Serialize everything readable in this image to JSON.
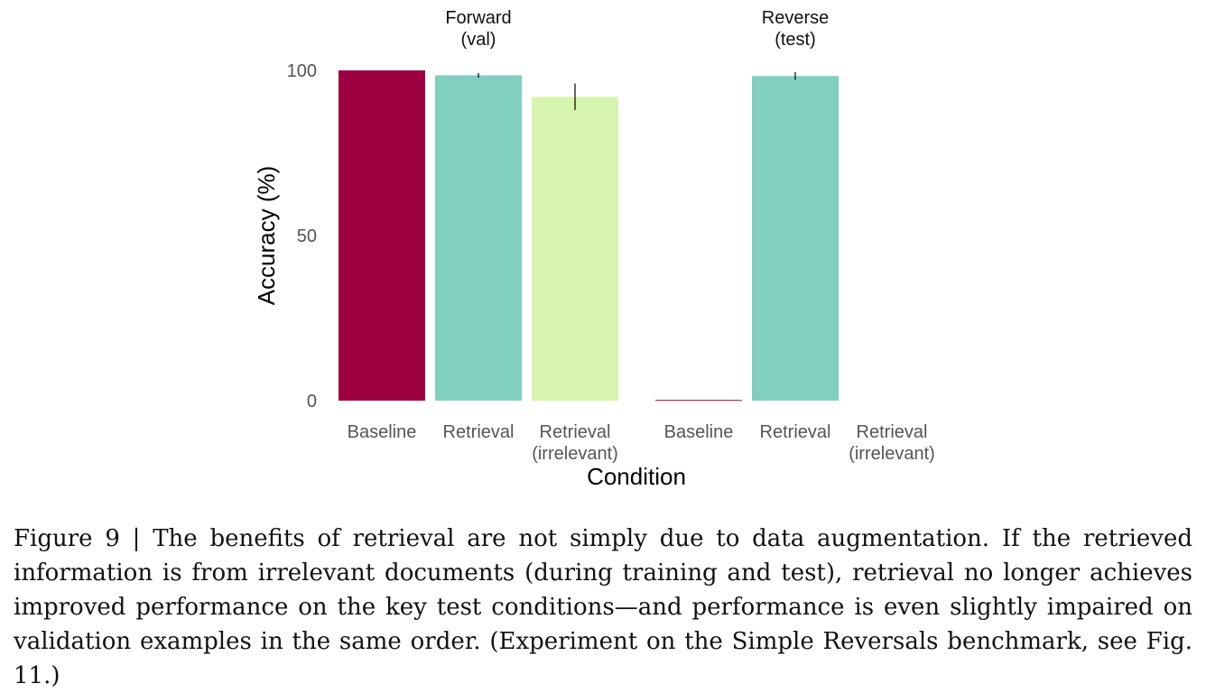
{
  "chart_data": {
    "type": "bar",
    "xlabel": "Condition",
    "ylabel": "Accuracy (%)",
    "ylim": [
      0,
      100
    ],
    "yticks": [
      0,
      50,
      100
    ],
    "grid": false,
    "facets": [
      {
        "title_lines": [
          "Forward",
          "(val)"
        ],
        "bars": [
          {
            "label_lines": [
              "Baseline"
            ],
            "value": 100,
            "err": 0,
            "color": "#9E0142"
          },
          {
            "label_lines": [
              "Retrieval"
            ],
            "value": 98.5,
            "err": 0.7,
            "color": "#80CFC0"
          },
          {
            "label_lines": [
              "Retrieval",
              "(irrelevant)"
            ],
            "value": 92,
            "err": 4,
            "color": "#D8F5B0"
          }
        ]
      },
      {
        "title_lines": [
          "Reverse",
          "(test)"
        ],
        "bars": [
          {
            "label_lines": [
              "Baseline"
            ],
            "value": 0.2,
            "err": 0,
            "color": "#9E0142"
          },
          {
            "label_lines": [
              "Retrieval"
            ],
            "value": 98.3,
            "err": 1.2,
            "color": "#80CFC0"
          },
          {
            "label_lines": [
              "Retrieval",
              "(irrelevant)"
            ],
            "value": 0,
            "err": 0,
            "color": "#D8F5B0"
          }
        ]
      }
    ]
  },
  "caption": "Figure 9 | The benefits of retrieval are not simply due to data augmentation. If the retrieved information is from irrelevant documents (during training and test), retrieval no longer achieves improved performance on the key test conditions—and performance is even slightly impaired on validation examples in the same order. (Experiment on the Simple Reversals benchmark, see Fig. 11.)"
}
